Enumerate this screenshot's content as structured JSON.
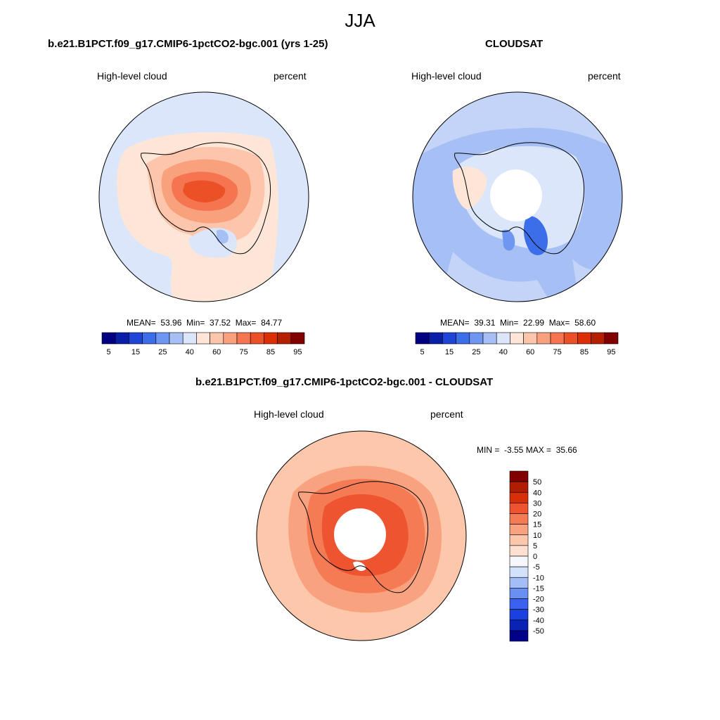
{
  "title": "JJA",
  "colors": {
    "seq": [
      "#000080",
      "#0a1fa8",
      "#1f45d6",
      "#3b6ee8",
      "#6f96f0",
      "#a6bff5",
      "#dbe6fb",
      "#fde6d8",
      "#fcc5ac",
      "#f9a07d",
      "#f4754f",
      "#ec5027",
      "#dc2f06",
      "#b41f00",
      "#800000"
    ],
    "diff": [
      "#00008a",
      "#0a23b4",
      "#1a40e0",
      "#3a62ee",
      "#6a8ff2",
      "#a2bdf7",
      "#d2e2fb",
      "#f5f7fc",
      "#fde0cf",
      "#fcc7ab",
      "#f9a27f",
      "#f57b55",
      "#ee5430",
      "#d92f08",
      "#b01e00",
      "#800000"
    ],
    "antarctica": "#f9a07d"
  },
  "panels": [
    {
      "title": "b.e21.B1PCT.f09_g17.CMIP6-1pctCO2-bgc.001 (yrs 1-25)",
      "left_label": "High-level cloud",
      "right_label": "percent",
      "stats": "MEAN=  53.96  Min=  37.52  Max=  84.77",
      "colorbar_labels": [
        "5",
        "15",
        "25",
        "40",
        "60",
        "75",
        "85",
        "95"
      ]
    },
    {
      "title": "CLOUDSAT",
      "left_label": "High-level cloud",
      "right_label": "percent",
      "stats": "MEAN=  39.31  Min=  22.99  Max=  58.60",
      "colorbar_labels": [
        "5",
        "15",
        "25",
        "40",
        "60",
        "75",
        "85",
        "95"
      ]
    },
    {
      "title": "b.e21.B1PCT.f09_g17.CMIP6-1pctCO2-bgc.001 - CLOUDSAT",
      "left_label": "High-level cloud",
      "right_label": "percent",
      "stats": "MIN =  -3.55 MAX =  35.66",
      "colorbar_labels": [
        "50",
        "40",
        "30",
        "20",
        "15",
        "10",
        "5",
        "0",
        "-5",
        "-10",
        "-15",
        "-20",
        "-30",
        "-40",
        "-50"
      ]
    }
  ]
}
